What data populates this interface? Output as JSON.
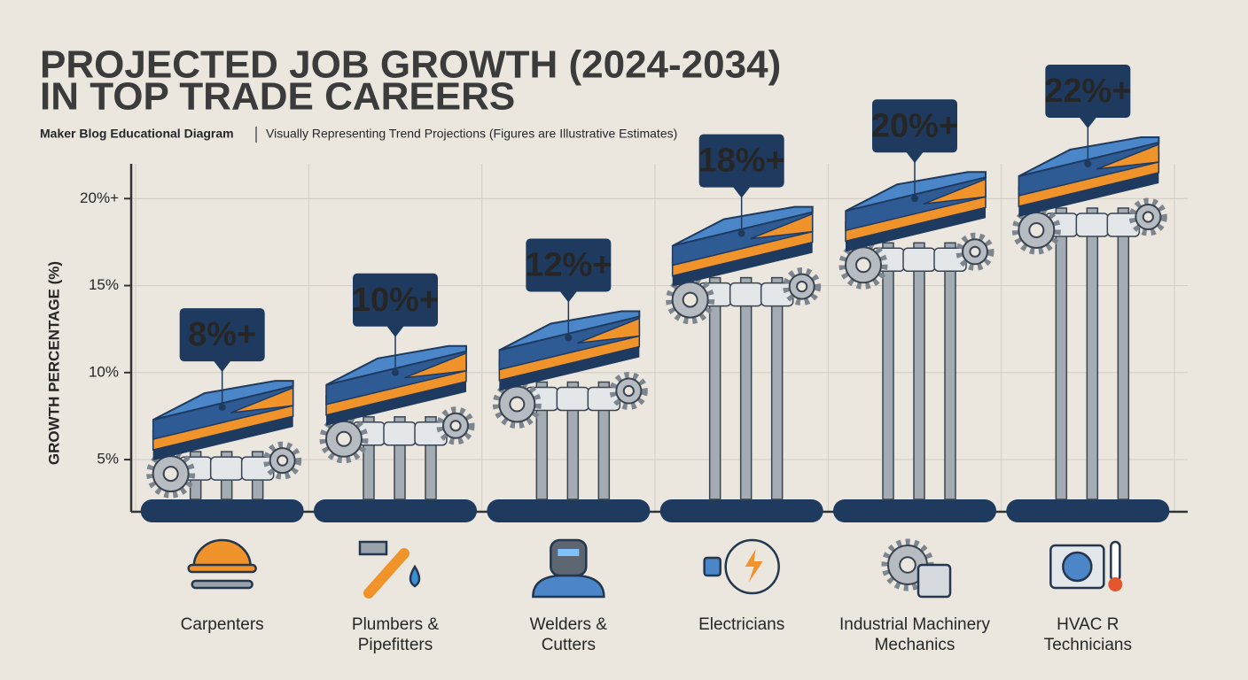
{
  "chart_data": {
    "type": "bar",
    "title": [
      "PROJECTED JOB GROWTH (2024-2034)",
      "IN TOP TRADE CAREERS"
    ],
    "subtitle": [
      "Maker Blog Educational Diagram",
      "Visually Representing Trend Projections (Figures are Illustrative Estimates)"
    ],
    "y_label": "GROWTH PERCENTAGE (%)",
    "categories": [
      "Carpenters",
      "Plumbers &\nPipefitters",
      "Welders &\nCutters",
      "Electricians",
      "Industrial Machinery\nMechanics",
      "HVAC R\nTechnicians"
    ],
    "values": [
      8,
      10,
      12,
      18,
      20,
      22
    ],
    "value_labels": [
      "8%+",
      "10%+",
      "12%+",
      "18%+",
      "20%+",
      "22%+"
    ],
    "color": "#4a86c8",
    "ylim": [
      2,
      22
    ],
    "yticks": [
      {
        "value": 5,
        "label": "5%"
      },
      {
        "value": 10,
        "label": "10%"
      },
      {
        "value": 15,
        "label": "15%"
      },
      {
        "value": 20,
        "label": "20%+"
      }
    ],
    "grid": true
  }
}
